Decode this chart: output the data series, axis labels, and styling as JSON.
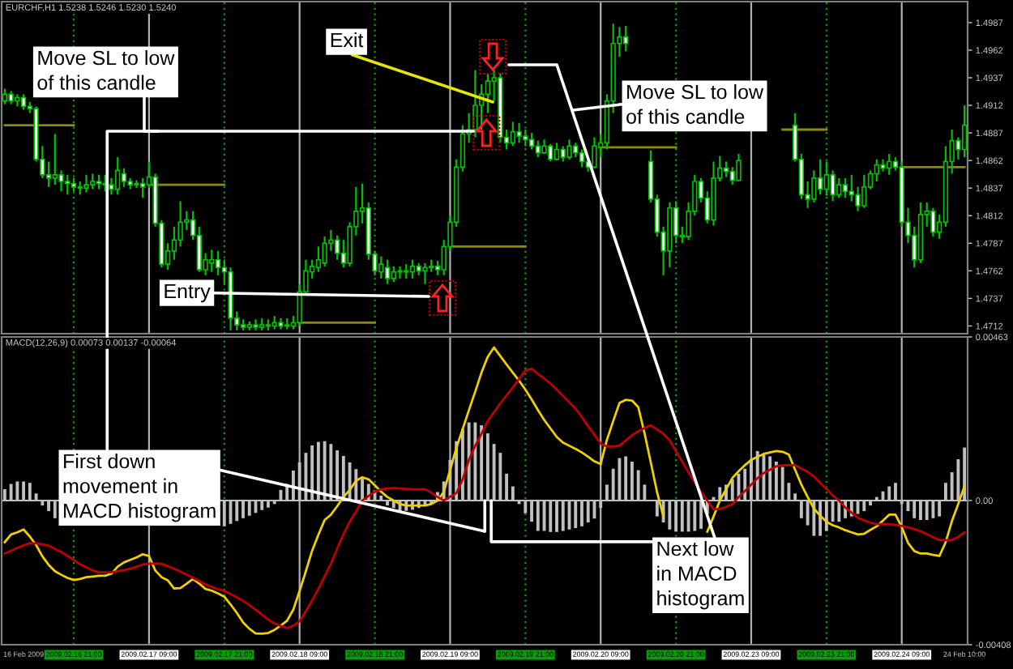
{
  "chart_data": [
    {
      "type": "candlestick",
      "title": "EURCHF,H1 1.5238 1.5246 1.5230 1.5240",
      "categories": [
        null,
        null,
        null,
        null,
        null,
        null,
        null,
        null,
        null,
        null,
        null,
        null,
        null,
        null,
        null,
        null,
        null,
        null,
        null,
        null,
        null,
        null,
        null,
        null,
        null,
        null,
        null,
        null,
        null,
        null,
        null,
        null,
        null,
        null,
        null,
        null,
        null,
        null,
        null,
        null,
        null,
        null,
        null,
        null,
        null,
        null,
        null,
        null,
        null,
        null,
        null,
        null,
        null,
        null,
        null,
        null,
        null,
        null,
        null,
        null,
        null,
        null,
        null,
        null,
        null,
        null,
        null,
        null,
        null,
        null,
        null,
        null,
        null,
        null,
        null,
        null,
        null,
        null,
        null,
        null,
        null,
        null,
        null,
        null,
        null,
        null,
        null,
        null,
        null,
        null,
        null,
        null,
        null,
        null,
        null,
        null,
        null,
        null,
        null,
        null,
        null,
        null,
        null,
        null,
        null,
        null,
        null,
        null,
        null,
        null,
        null,
        null,
        null,
        null,
        null,
        null,
        null,
        null,
        null,
        null,
        null,
        null,
        null,
        null,
        null,
        null,
        null,
        null,
        null,
        null,
        null,
        null,
        null,
        null,
        null,
        null,
        null,
        null,
        null,
        null,
        null,
        null,
        null,
        null,
        null,
        null,
        null,
        null,
        null,
        null,
        null,
        null,
        null,
        null
      ],
      "ohlc": [
        [
          1.4916,
          1.4927,
          1.4913,
          1.4922
        ],
        [
          1.4922,
          1.4925,
          1.4913,
          1.4916
        ],
        [
          1.4916,
          1.4922,
          1.4911,
          1.4919
        ],
        [
          1.4919,
          1.4922,
          1.4908,
          1.4911
        ],
        [
          1.4911,
          1.4915,
          1.4905,
          1.4909
        ],
        [
          1.4909,
          1.4911,
          1.4861,
          1.4863
        ],
        [
          1.4863,
          1.4875,
          1.4846,
          1.4849
        ],
        [
          1.4849,
          1.4861,
          1.4838,
          1.4846
        ],
        [
          1.4846,
          1.4886,
          1.484,
          1.4849
        ],
        [
          1.4849,
          1.4853,
          1.4834,
          1.4843
        ],
        [
          1.4843,
          1.4849,
          1.4831,
          1.4841
        ],
        [
          1.4841,
          1.4846,
          1.4834,
          1.4838
        ],
        [
          1.4838,
          1.4843,
          1.4831,
          1.4837
        ],
        [
          1.4837,
          1.4849,
          1.4833,
          1.484
        ],
        [
          1.484,
          1.485,
          1.4836,
          1.4843
        ],
        [
          1.4843,
          1.4849,
          1.4836,
          1.4841
        ],
        [
          1.4841,
          1.4849,
          1.4834,
          1.484
        ],
        [
          1.484,
          1.4846,
          1.4831,
          1.4836
        ],
        [
          1.4836,
          1.4865,
          1.4831,
          1.4853
        ],
        [
          1.485,
          1.4855,
          1.4838,
          1.4843
        ],
        [
          1.4843,
          1.4846,
          1.4836,
          1.484
        ],
        [
          1.484,
          1.4844,
          1.4837,
          1.4841
        ],
        [
          1.4841,
          1.4846,
          1.4828,
          1.4838
        ],
        [
          1.484,
          1.4861,
          1.4837,
          1.4847
        ],
        [
          1.4847,
          1.485,
          1.4802,
          1.4805
        ],
        [
          1.4805,
          1.4808,
          1.4765,
          1.4768
        ],
        [
          1.4768,
          1.4787,
          1.4763,
          1.478
        ],
        [
          1.478,
          1.4802,
          1.4772,
          1.479
        ],
        [
          1.479,
          1.4825,
          1.4784,
          1.4806
        ],
        [
          1.4806,
          1.4816,
          1.4799,
          1.4808
        ],
        [
          1.4808,
          1.4816,
          1.479,
          1.4794
        ],
        [
          1.4794,
          1.4802,
          1.4761,
          1.4763
        ],
        [
          1.4763,
          1.4778,
          1.4758,
          1.4772
        ],
        [
          1.4769,
          1.4781,
          1.4761,
          1.4772
        ],
        [
          1.4772,
          1.478,
          1.4758,
          1.4765
        ],
        [
          1.4765,
          1.4772,
          1.475,
          1.4761
        ],
        [
          1.4761,
          1.4765,
          1.4708,
          1.4719
        ],
        [
          1.4719,
          1.4725,
          1.4708,
          1.4713
        ],
        [
          1.4713,
          1.4718,
          1.4708,
          1.4711
        ],
        [
          1.4711,
          1.4716,
          1.4708,
          1.4713
        ],
        [
          1.4713,
          1.4718,
          1.4708,
          1.4711
        ],
        [
          1.4711,
          1.4719,
          1.4708,
          1.4713
        ],
        [
          1.4713,
          1.4718,
          1.4708,
          1.4712
        ],
        [
          1.4712,
          1.4721,
          1.4709,
          1.4715
        ],
        [
          1.4715,
          1.4719,
          1.4709,
          1.4712
        ],
        [
          1.4712,
          1.4719,
          1.4709,
          1.4713
        ],
        [
          1.4712,
          1.4721,
          1.4709,
          1.4715
        ],
        [
          1.4715,
          1.475,
          1.4712,
          1.4743
        ],
        [
          1.4743,
          1.4772,
          1.474,
          1.4762
        ],
        [
          1.4761,
          1.4772,
          1.4755,
          1.4766
        ],
        [
          1.4765,
          1.4784,
          1.4761,
          1.4772
        ],
        [
          1.4769,
          1.4793,
          1.4766,
          1.4787
        ],
        [
          1.4787,
          1.4799,
          1.478,
          1.479
        ],
        [
          1.479,
          1.4794,
          1.4772,
          1.4778
        ],
        [
          1.4778,
          1.479,
          1.4765,
          1.4769
        ],
        [
          1.4769,
          1.4806,
          1.4766,
          1.4802
        ],
        [
          1.4802,
          1.4838,
          1.4794,
          1.4816
        ],
        [
          1.4816,
          1.4841,
          1.4805,
          1.4819
        ],
        [
          1.4819,
          1.4824,
          1.4772,
          1.4777
        ],
        [
          1.4777,
          1.478,
          1.4758,
          1.4762
        ],
        [
          1.4761,
          1.4775,
          1.4755,
          1.4768
        ],
        [
          1.4765,
          1.4772,
          1.475,
          1.4755
        ],
        [
          1.4755,
          1.4766,
          1.4752,
          1.4761
        ],
        [
          1.4761,
          1.4766,
          1.4755,
          1.4762
        ],
        [
          1.4762,
          1.4768,
          1.4755,
          1.4761
        ],
        [
          1.4761,
          1.4772,
          1.4755,
          1.4766
        ],
        [
          1.4766,
          1.4769,
          1.4758,
          1.4762
        ],
        [
          1.4762,
          1.4769,
          1.475,
          1.4765
        ],
        [
          1.4765,
          1.4772,
          1.4761,
          1.4766
        ],
        [
          1.4766,
          1.4771,
          1.4758,
          1.4763
        ],
        [
          1.4763,
          1.479,
          1.4758,
          1.4784
        ],
        [
          1.4784,
          1.4812,
          1.478,
          1.4806
        ],
        [
          1.4806,
          1.4863,
          1.4802,
          1.4856
        ],
        [
          1.4856,
          1.4894,
          1.4852,
          1.4886
        ],
        [
          1.4886,
          1.4905,
          1.4878,
          1.489
        ],
        [
          1.489,
          1.4944,
          1.4883,
          1.4912
        ],
        [
          1.4912,
          1.4931,
          1.489,
          1.4922
        ],
        [
          1.4922,
          1.4941,
          1.4905,
          1.4934
        ],
        [
          1.4934,
          1.4944,
          1.4916,
          1.4937
        ],
        [
          1.4937,
          1.4941,
          1.4878,
          1.4883
        ],
        [
          1.4883,
          1.489,
          1.4872,
          1.4878
        ],
        [
          1.4878,
          1.4897,
          1.4875,
          1.4888
        ],
        [
          1.4888,
          1.4896,
          1.4878,
          1.4884
        ],
        [
          1.4884,
          1.489,
          1.4875,
          1.4881
        ],
        [
          1.4881,
          1.4887,
          1.4872,
          1.4875
        ],
        [
          1.4875,
          1.488,
          1.4865,
          1.4869
        ],
        [
          1.4869,
          1.4881,
          1.4868,
          1.4875
        ],
        [
          1.4875,
          1.4877,
          1.4861,
          1.4863
        ],
        [
          1.4863,
          1.4878,
          1.4862,
          1.4872
        ],
        [
          1.4872,
          1.4875,
          1.4861,
          1.4865
        ],
        [
          1.4865,
          1.4881,
          1.4863,
          1.4875
        ],
        [
          1.4875,
          1.4878,
          1.4865,
          1.4869
        ],
        [
          1.4869,
          1.4872,
          1.4856,
          1.4861
        ],
        [
          1.4861,
          1.4865,
          1.4852,
          1.4856
        ],
        [
          1.4856,
          1.4883,
          1.4855,
          1.4875
        ],
        [
          1.4874,
          1.4886,
          1.4865,
          1.4878
        ],
        [
          1.4878,
          1.4922,
          1.4872,
          1.4916
        ],
        [
          1.4916,
          1.4986,
          1.4905,
          1.4968
        ],
        [
          1.4968,
          1.4983,
          1.4956,
          1.4974
        ],
        [
          1.4974,
          1.4984,
          1.4961,
          1.4968
        ],
        null,
        null,
        null,
        [
          1.4861,
          1.4871,
          1.4824,
          1.4827
        ],
        [
          1.4827,
          1.4831,
          1.4793,
          1.4797
        ],
        [
          1.4797,
          1.4802,
          1.4758,
          1.478
        ],
        [
          1.478,
          1.4824,
          1.4765,
          1.4819
        ],
        [
          1.4819,
          1.4825,
          1.4787,
          1.4794
        ],
        [
          1.4794,
          1.4802,
          1.4787,
          1.4793
        ],
        [
          1.4793,
          1.4824,
          1.479,
          1.4816
        ],
        [
          1.4816,
          1.4849,
          1.4812,
          1.4843
        ],
        [
          1.4843,
          1.4846,
          1.4824,
          1.4828
        ],
        [
          1.4828,
          1.4834,
          1.4805,
          1.4808
        ],
        [
          1.4808,
          1.4861,
          1.4803,
          1.4846
        ],
        [
          1.4846,
          1.4866,
          1.4843,
          1.4855
        ],
        [
          1.4855,
          1.4861,
          1.4847,
          1.4852
        ],
        [
          1.4852,
          1.4856,
          1.484,
          1.4844
        ],
        [
          1.4844,
          1.4868,
          1.4843,
          1.4862
        ],
        null,
        null,
        null,
        null,
        null,
        null,
        null,
        null,
        [
          1.4894,
          1.4905,
          1.4861,
          1.4863
        ],
        [
          1.4863,
          1.4868,
          1.4827,
          1.4831
        ],
        [
          1.4831,
          1.4843,
          1.4819,
          1.4827
        ],
        [
          1.4827,
          1.4853,
          1.4824,
          1.4846
        ],
        [
          1.4846,
          1.4863,
          1.4831,
          1.4836
        ],
        [
          1.4836,
          1.4861,
          1.483,
          1.4849
        ],
        [
          1.4849,
          1.4853,
          1.4825,
          1.4831
        ],
        [
          1.4831,
          1.4846,
          1.4828,
          1.484
        ],
        [
          1.484,
          1.4846,
          1.4828,
          1.4834
        ],
        [
          1.4834,
          1.4849,
          1.4825,
          1.4831
        ],
        [
          1.4831,
          1.4838,
          1.4816,
          1.4821
        ],
        [
          1.4821,
          1.4849,
          1.4819,
          1.4838
        ],
        [
          1.4838,
          1.4853,
          1.4836,
          1.485
        ],
        [
          1.485,
          1.4863,
          1.4843,
          1.4858
        ],
        [
          1.4858,
          1.4863,
          1.4852,
          1.4855
        ],
        [
          1.4855,
          1.4868,
          1.4849,
          1.4861
        ],
        [
          1.4861,
          1.4865,
          1.4853,
          1.4856
        ],
        [
          1.4856,
          1.4861,
          1.4802,
          1.4806
        ],
        [
          1.4806,
          1.4819,
          1.4787,
          1.4794
        ],
        [
          1.4794,
          1.4802,
          1.4765,
          1.4772
        ],
        [
          1.4772,
          1.4824,
          1.4769,
          1.4813
        ],
        [
          1.4813,
          1.4824,
          1.4802,
          1.4816
        ],
        [
          1.4816,
          1.4819,
          1.4793,
          1.4797
        ],
        [
          1.4797,
          1.4813,
          1.4791,
          1.4806
        ],
        [
          1.4806,
          1.4875,
          1.4802,
          1.4861
        ],
        [
          1.4861,
          1.489,
          1.485,
          1.488
        ],
        [
          1.488,
          1.4883,
          1.4863,
          1.4872
        ],
        [
          1.4872,
          1.4912,
          1.4865,
          1.4894
        ]
      ],
      "color": "#00c000",
      "series": [
        {
          "type": "line",
          "color": "#8c8c00",
          "values": [
            1.4894,
            1.4894,
            1.4894,
            1.4894,
            1.4894,
            1.4894,
            1.4894,
            1.4894,
            1.4894,
            1.4894,
            1.4894,
            1.4894,
            null,
            null,
            null,
            null,
            null,
            null,
            null,
            null,
            null,
            null,
            null,
            1.484,
            1.484,
            1.484,
            1.484,
            1.484,
            1.484,
            1.484,
            1.484,
            1.484,
            1.484,
            1.484,
            1.484,
            1.484,
            null,
            null,
            null,
            null,
            null,
            null,
            null,
            null,
            null,
            null,
            null,
            1.4715,
            1.4715,
            1.4715,
            1.4715,
            1.4715,
            1.4715,
            1.4715,
            1.4715,
            1.4715,
            1.4715,
            1.4715,
            1.4715,
            1.4715,
            null,
            null,
            null,
            null,
            null,
            null,
            null,
            null,
            null,
            null,
            null,
            1.4784,
            1.4784,
            1.4784,
            1.4784,
            1.4784,
            1.4784,
            1.4784,
            1.4784,
            1.4784,
            1.4784,
            1.4784,
            1.4784,
            1.4784,
            null,
            null,
            null,
            null,
            null,
            null,
            null,
            null,
            null,
            null,
            null,
            1.4874,
            1.4874,
            1.4874,
            1.4874,
            1.4874,
            1.4874,
            1.4874,
            1.4874,
            1.4874,
            1.4874,
            1.4874,
            1.4874,
            1.4874,
            null,
            null,
            null,
            null,
            null,
            null,
            null,
            null,
            null,
            null,
            null,
            null,
            null,
            null,
            null,
            null,
            1.489,
            1.489,
            1.489,
            1.489,
            1.489,
            1.489,
            1.489,
            1.489,
            null,
            null,
            null,
            null,
            null,
            null,
            null,
            null,
            null,
            null,
            null,
            1.4856,
            1.4856,
            1.4856,
            1.4856,
            1.4856,
            1.4856,
            1.4856,
            1.4856,
            1.4856,
            1.4856,
            1.4856
          ]
        }
      ],
      "ylim": [
        1.4705,
        1.5006
      ],
      "yticks": [
        1.4712,
        1.4737,
        1.4762,
        1.4787,
        1.4812,
        1.4837,
        1.4862,
        1.4887,
        1.4912,
        1.4937,
        1.4962,
        1.4987
      ],
      "tick_labels": "y",
      "annotations": [
        "Move SL to low\nof this candle",
        "Exit",
        "Entry",
        "Move SL to low\nof this candle"
      ]
    },
    {
      "type": "bar",
      "title": "MACD(12,26,9) 0.00073 0.00137 -0.00064",
      "categories": [
        null,
        null,
        null,
        "16 Feb 2009",
        null,
        null,
        null,
        null,
        null,
        null,
        null,
        "2009.02.16 21:00",
        null,
        null,
        null,
        null,
        null,
        null,
        null,
        null,
        null,
        null,
        null,
        "2009.02.17 09:00",
        null,
        null,
        null,
        null,
        null,
        null,
        null,
        null,
        null,
        null,
        null,
        "2009.02.17 21:00",
        null,
        null,
        null,
        null,
        null,
        null,
        null,
        null,
        null,
        null,
        null,
        "2009.02.18 09:00",
        null,
        null,
        null,
        null,
        null,
        null,
        null,
        null,
        null,
        null,
        null,
        "2009.02.18 21:00",
        null,
        null,
        null,
        null,
        null,
        null,
        null,
        null,
        null,
        null,
        null,
        "2009.02.19 09:00",
        null,
        null,
        null,
        null,
        null,
        null,
        null,
        null,
        null,
        null,
        null,
        "2009.02.19 21:00",
        null,
        null,
        null,
        null,
        null,
        null,
        null,
        null,
        null,
        null,
        null,
        "2009.02.20 09:00",
        null,
        null,
        null,
        null,
        null,
        null,
        null,
        null,
        null,
        null,
        null,
        "2009.02.20 21:00",
        null,
        null,
        null,
        null,
        null,
        null,
        null,
        null,
        null,
        null,
        null,
        "2009.02.23 09:00",
        null,
        null,
        null,
        null,
        null,
        null,
        null,
        null,
        null,
        null,
        null,
        "2009.02.23 21:00",
        null,
        null,
        null,
        null,
        null,
        null,
        null,
        null,
        null,
        null,
        null,
        "2009.02.24 09:00",
        null,
        null,
        null,
        null,
        null,
        null,
        null,
        null,
        null,
        "24 Feb 10:00"
      ],
      "series": [
        {
          "color": "#c0c0c0",
          "values": [
            0.00032,
            0.00047,
            0.00054,
            0.00054,
            0.0005,
            0.0002,
            -0.00014,
            -0.0003,
            -0.0005,
            null,
            null,
            null,
            null,
            null,
            null,
            null,
            null,
            null,
            null,
            null,
            null,
            null,
            null,
            null,
            null,
            null,
            null,
            null,
            null,
            null,
            null,
            null,
            null,
            null,
            null,
            -0.00073,
            -0.00066,
            -0.00058,
            -0.0005,
            -0.00043,
            -0.00035,
            -0.00027,
            -0.0002,
            -0.0001,
            0.0003,
            0.00047,
            0.00085,
            0.00108,
            0.00135,
            0.00156,
            0.00166,
            0.00168,
            0.0016,
            0.00142,
            0.00126,
            0.00108,
            0.00089,
            0.00065,
            0.00047,
            0.00029,
            0.00014,
            -0.00014,
            -0.00021,
            -0.00029,
            -0.00029,
            -0.00026,
            -0.00021,
            -0.00014,
            -0.0001,
            0.00024,
            0.00054,
            0.00115,
            0.00168,
            0.00203,
            0.00221,
            0.00221,
            0.00213,
            0.0019,
            0.0016,
            0.00135,
            0.00076,
            0.0004,
            -0.0001,
            -0.00036,
            -0.0006,
            -0.00086,
            -0.00086,
            -0.00089,
            -0.00089,
            -0.00086,
            -0.00082,
            -0.00078,
            -0.00073,
            -0.00062,
            -0.00051,
            -0.00021,
            0.00045,
            0.0009,
            0.0012,
            0.00125,
            0.0011,
            0.00086,
            0.00045,
            0,
            -0.00045,
            -0.00062,
            -0.00082,
            -0.00088,
            -0.00088,
            -0.00088,
            -0.00086,
            -0.0008,
            -0.00038,
            0.0001,
            0.00038,
            0.00045,
            0.0006,
            0.00076,
            0.0009,
            0.00117,
            0.0014,
            0.0013,
            0.00125,
            0.0011,
            0.00095,
            0.0005,
            0.0002,
            -0.0005,
            -0.0007,
            -0.001,
            -0.001,
            -0.00086,
            -0.0006,
            -0.0006,
            -0.0005,
            -0.00045,
            -0.00038,
            -0.0003,
            -0.00014,
            0.0001,
            0.00026,
            0.0004,
            0.0005,
            -0.0001,
            -0.0003,
            -0.0005,
            -0.00055,
            -0.00055,
            -0.0005,
            -0.00045,
            0.0005,
            0.0008,
            0.00117,
            0.0015
          ]
        },
        {
          "type": "line",
          "color": "#f0d000",
          "values": [
            -0.00118,
            -0.00096,
            -0.0009,
            -0.00082,
            -0.00102,
            -0.00126,
            -0.00158,
            -0.00182,
            -0.002,
            -0.0021,
            -0.00219,
            -0.00225,
            -0.00222,
            -0.00217,
            -0.00215,
            -0.00213,
            -0.00213,
            -0.00207,
            -0.00187,
            -0.00175,
            -0.00168,
            -0.00161,
            -0.00152,
            -0.00157,
            -0.00198,
            -0.00217,
            -0.00226,
            -0.00249,
            -0.00248,
            -0.00235,
            -0.00222,
            -0.00235,
            -0.0025,
            -0.00255,
            -0.00263,
            -0.00272,
            -0.00294,
            -0.00318,
            -0.00345,
            -0.00363,
            -0.00376,
            -0.00377,
            -0.00375,
            -0.00366,
            -0.00354,
            -0.0034,
            -0.00309,
            -0.00256,
            -0.002,
            -0.00142,
            -0.00097,
            -0.00055,
            -0.0004,
            -0.00016,
            0.0001,
            0.0003,
            0.00056,
            0.00066,
            0.0006,
            0.00043,
            0.00025,
            0.0001,
            0,
            -0.0001,
            -0.00014,
            -0.00014,
            -0.00014,
            -0.00014,
            -0.0001,
            0,
            0.00025,
            0.00087,
            0.00149,
            0.00202,
            0.00256,
            0.00308,
            0.00362,
            0.00407,
            0.00433,
            0.00409,
            0.00385,
            0.00362,
            0.00339,
            0.00314,
            0.00286,
            0.00256,
            0.00228,
            0.00204,
            0.0018,
            0.00164,
            0.00155,
            0.00146,
            0.00136,
            0.00124,
            0.00111,
            0.00103,
            0.00172,
            0.00225,
            0.00276,
            0.00285,
            0.00283,
            0.00264,
            0.0019,
            0.00107,
            0.00023,
            -0.00045,
            null,
            null,
            null,
            null,
            null,
            null,
            -0.00088,
            -0.00045,
            0,
            0.00032,
            0.00064,
            0.00083,
            0.001,
            0.00115,
            0.00124,
            0.00132,
            0.00136,
            0.0014,
            0.00138,
            0.0013,
            0.00087,
            0.00045,
            0.0001,
            -0.00023,
            -0.00043,
            -0.0006,
            -0.0007,
            -0.00076,
            -0.00084,
            -0.0009,
            -0.00096,
            -0.00094,
            -0.00083,
            -0.00073,
            -0.00057,
            -0.0004,
            -0.0004,
            -0.00075,
            -0.0012,
            -0.00143,
            -0.0015,
            -0.0015,
            -0.00154,
            -0.00157,
            -0.00118,
            -0.00058,
            -0.0001,
            0.00041
          ]
        },
        {
          "type": "line",
          "color": "#c00000",
          "values": [
            -0.0015,
            -0.00142,
            -0.00134,
            -0.00127,
            -0.00121,
            -0.00121,
            -0.00124,
            -0.00128,
            -0.00137,
            -0.00146,
            -0.00157,
            -0.00168,
            -0.0018,
            -0.00189,
            -0.00198,
            -0.00203,
            -0.00203,
            -0.00203,
            -0.002,
            -0.00197,
            -0.00193,
            -0.00187,
            -0.00181,
            -0.00179,
            -0.00178,
            -0.00179,
            -0.00186,
            -0.00193,
            -0.00201,
            -0.0021,
            -0.00219,
            -0.00228,
            -0.00237,
            -0.00245,
            -0.00251,
            -0.00256,
            -0.00265,
            -0.00274,
            -0.00284,
            -0.00296,
            -0.00309,
            -0.00323,
            -0.00337,
            -0.00348,
            -0.00355,
            -0.00361,
            -0.00354,
            -0.00342,
            -0.00313,
            -0.00283,
            -0.0025,
            -0.00214,
            -0.00179,
            -0.00136,
            -0.00095,
            -0.0006,
            -0.00031,
            0,
            0.00013,
            0.00025,
            0.00032,
            0.00034,
            0.00035,
            0.00034,
            0.00033,
            0.00032,
            0.00032,
            0.00032,
            0.00022,
            0.0001,
            0,
            0.00011,
            0.00021,
            0.0006,
            0.00115,
            0.00155,
            0.00189,
            0.00225,
            0.0025,
            0.00275,
            0.00298,
            0.0032,
            0.00344,
            0.00368,
            0.00373,
            0.00358,
            0.00345,
            0.00331,
            0.00314,
            0.00296,
            0.00278,
            0.0026,
            0.00236,
            0.0021,
            0.00186,
            0.00161,
            0.00153,
            0.00153,
            0.00155,
            0.0017,
            0.00185,
            0.00196,
            0.00205,
            0.00213,
            0.00201,
            0.00189,
            0.0017,
            0.0014,
            0.0011,
            0.0008,
            0.00051,
            0.00024,
            0,
            -0.00025,
            -0.00024,
            -0.00018,
            -0.0001,
            0.0001,
            0.00027,
            0.00045,
            0.00063,
            0.00078,
            0.00087,
            0.00097,
            0.001,
            0.001,
            0.001,
            0.0009,
            0.00081,
            0.00068,
            0.0005,
            0.00033,
            0.00014,
            0,
            -0.0002,
            -0.00034,
            -0.00049,
            -0.00056,
            -0.00063,
            -0.00067,
            -0.00067,
            -0.00067,
            -0.00069,
            -0.00072,
            -0.00076,
            -0.00081,
            -0.00087,
            -0.00095,
            -0.00104,
            -0.00112,
            -0.00112,
            -0.00112,
            -0.00103,
            -0.0009
          ]
        }
      ],
      "ylim": [
        -0.00408,
        0.00463
      ],
      "yticks": [
        -0.00408,
        {
          "value": 0,
          "label": "0.00"
        },
        0.00463
      ],
      "ref_lines": [
        {
          "axis": "y",
          "value": 0,
          "color": "#c0c0c0",
          "line_style": "solid"
        }
      ],
      "annotations": [
        "First down\nmovement in\nMACD histogram",
        {
          "text": "Next low\nin MACD\nhistogram",
          "y": 0
        }
      ]
    }
  ]
}
